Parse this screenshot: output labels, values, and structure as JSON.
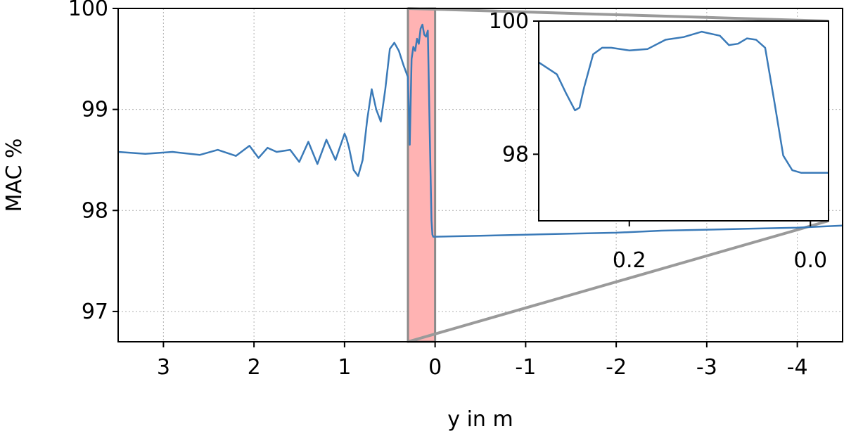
{
  "chart_data": {
    "type": "line",
    "xlabel": "y in m",
    "ylabel": "MAC %",
    "xlim": [
      3.5,
      -4.5
    ],
    "ylim": [
      96.7,
      100.0
    ],
    "xticks": [
      3,
      2,
      1,
      0,
      -1,
      -2,
      -3,
      -4
    ],
    "xtick_labels": [
      "3",
      "2",
      "1",
      "0",
      "-1",
      "-2",
      "-3",
      "-4"
    ],
    "yticks": [
      97,
      98,
      99,
      100
    ],
    "ytick_labels": [
      "97",
      "98",
      "99",
      "100"
    ],
    "grid": true,
    "line_color": "#3a7ab8",
    "highlight_region": {
      "x_from": 0.3,
      "x_to": 0.0,
      "color": "#ffb3b3"
    },
    "series": [
      {
        "x": [
          3.5,
          3.2,
          2.9,
          2.6,
          2.4,
          2.2,
          2.05,
          1.95,
          1.85,
          1.75,
          1.6,
          1.5,
          1.4,
          1.3,
          1.2,
          1.1,
          1.0,
          0.98,
          0.95,
          0.9,
          0.85,
          0.8,
          0.75,
          0.7,
          0.65,
          0.6,
          0.55,
          0.5,
          0.45,
          0.4,
          0.35,
          0.3,
          0.28,
          0.26,
          0.24,
          0.22,
          0.2,
          0.18,
          0.16,
          0.14,
          0.12,
          0.1,
          0.08,
          0.06,
          0.04,
          0.03,
          0.02,
          0.0,
          -0.5,
          -1.0,
          -1.5,
          -2.0,
          -2.5,
          -3.0,
          -3.5,
          -4.0,
          -4.5
        ],
        "values": [
          98.58,
          98.56,
          98.58,
          98.55,
          98.6,
          98.54,
          98.64,
          98.52,
          98.62,
          98.58,
          98.6,
          98.48,
          98.68,
          98.46,
          98.7,
          98.5,
          98.76,
          98.72,
          98.62,
          98.4,
          98.34,
          98.5,
          98.9,
          99.2,
          99.0,
          98.88,
          99.2,
          99.6,
          99.66,
          99.58,
          99.44,
          99.32,
          98.65,
          99.5,
          99.62,
          99.58,
          99.7,
          99.65,
          99.8,
          99.84,
          99.74,
          99.72,
          99.78,
          98.8,
          97.9,
          97.76,
          97.74,
          97.74,
          97.75,
          97.76,
          97.77,
          97.78,
          97.8,
          97.81,
          97.82,
          97.83,
          97.85
        ]
      }
    ],
    "inset": {
      "xlim": [
        0.3,
        -0.02
      ],
      "ylim": [
        97.0,
        100.0
      ],
      "xticks": [
        0.2,
        0.0
      ],
      "xtick_labels": [
        "0.2",
        "0.0"
      ],
      "yticks": [
        98,
        100
      ],
      "ytick_labels": [
        "98",
        "100"
      ],
      "x": [
        0.3,
        0.28,
        0.27,
        0.26,
        0.255,
        0.25,
        0.24,
        0.23,
        0.22,
        0.2,
        0.18,
        0.16,
        0.14,
        0.12,
        0.1,
        0.09,
        0.08,
        0.07,
        0.06,
        0.05,
        0.04,
        0.03,
        0.02,
        0.01,
        0.0,
        -0.02
      ],
      "values": [
        99.38,
        99.2,
        98.92,
        98.66,
        98.7,
        99.0,
        99.5,
        99.6,
        99.6,
        99.56,
        99.58,
        99.72,
        99.76,
        99.84,
        99.78,
        99.64,
        99.66,
        99.74,
        99.72,
        99.6,
        98.8,
        97.98,
        97.76,
        97.72,
        97.72,
        97.72
      ]
    }
  }
}
